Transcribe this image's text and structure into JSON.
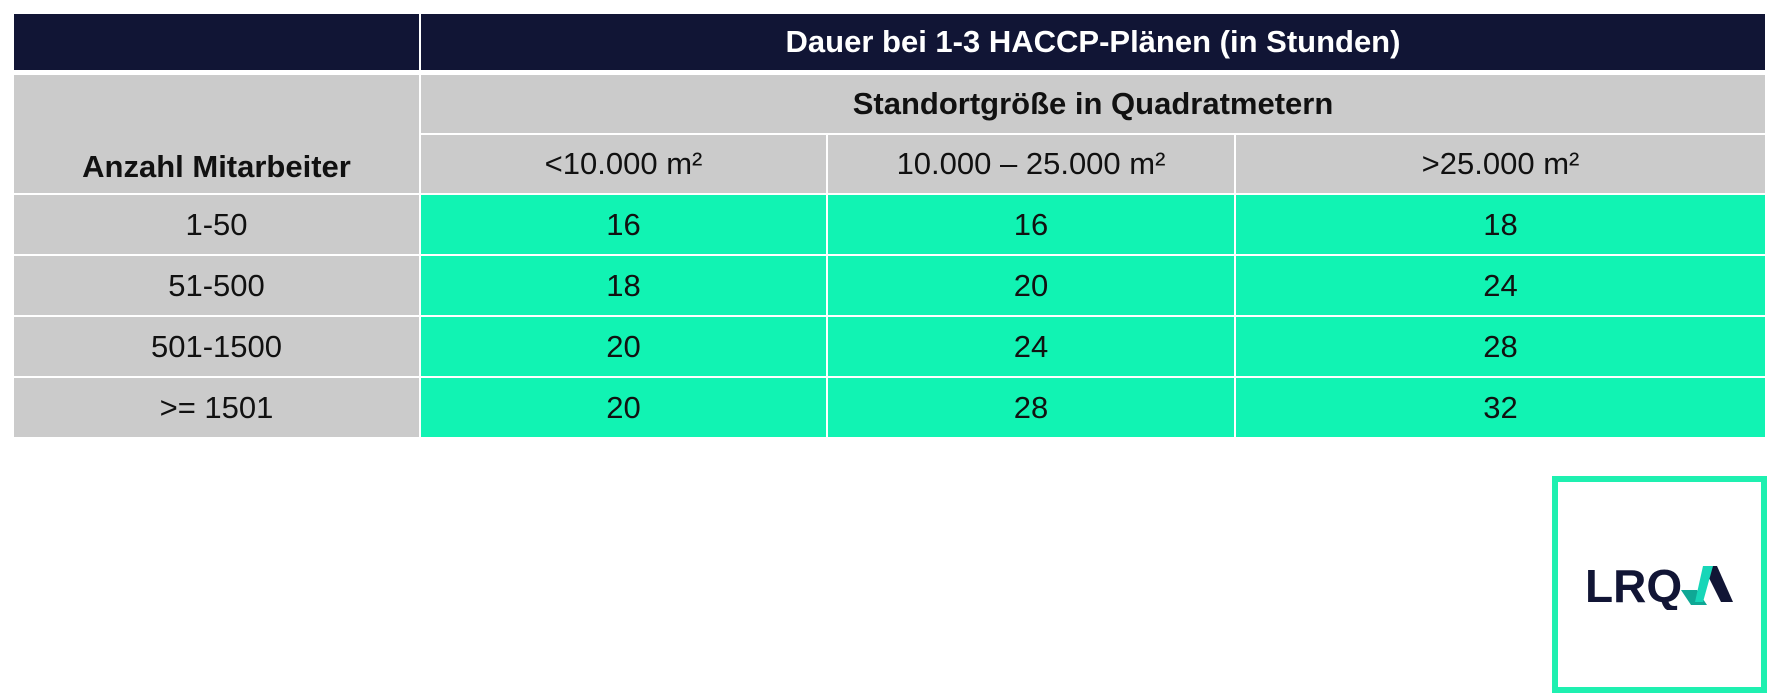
{
  "table": {
    "title": "Dauer bei 1-3 HACCP-Plänen (in Stunden)",
    "subtitle": "Standortgröße in Quadratmetern",
    "row_header": "Anzahl Mitarbeiter",
    "columns": [
      "<10.000 m²",
      "10.000 – 25.000 m²",
      ">25.000 m²"
    ],
    "rows": [
      {
        "label": "1-50",
        "values": [
          "16",
          "16",
          "18"
        ]
      },
      {
        "label": "51-500",
        "values": [
          "18",
          "20",
          "24"
        ]
      },
      {
        "label": "501-1500",
        "values": [
          "20",
          "24",
          "28"
        ]
      },
      {
        "label": ">= 1501",
        "values": [
          "20",
          "28",
          "32"
        ]
      }
    ]
  },
  "logo": {
    "text": "LRQA"
  },
  "colors": {
    "header": "#111535",
    "value_cells": "#11f3b3",
    "label_cells": "#cbcbcb",
    "logo_border": "#1ef0b0"
  }
}
